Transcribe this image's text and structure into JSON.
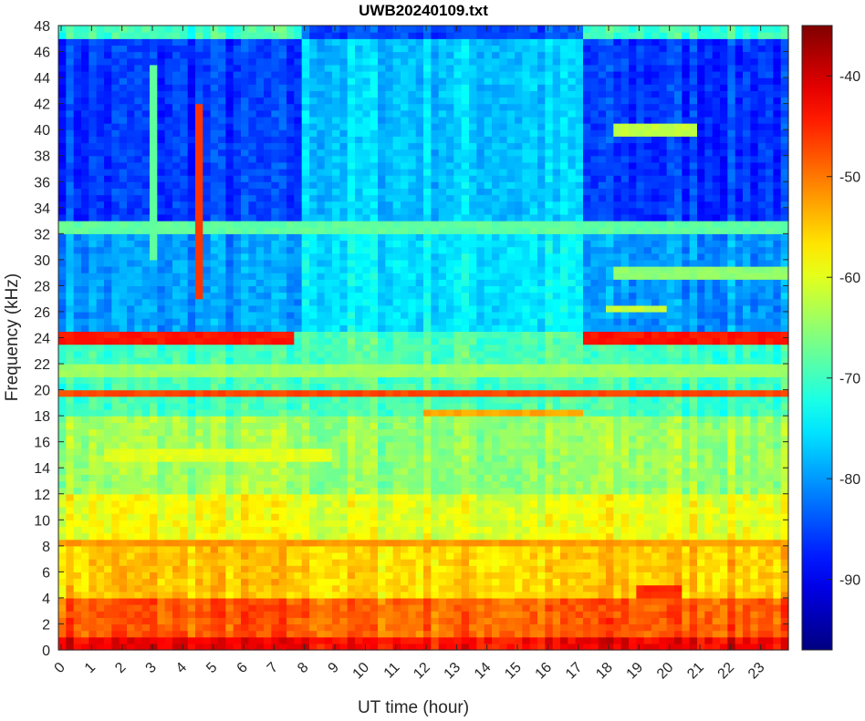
{
  "chart_data": {
    "type": "heatmap",
    "title": "UWB20240109.txt",
    "xlabel": "UT time (hour)",
    "ylabel": "Frequency (kHz)",
    "xlim": [
      0,
      24
    ],
    "ylim": [
      0,
      48
    ],
    "clim": [
      -97,
      -35
    ],
    "colormap": "jet",
    "xticks": [
      0,
      1,
      2,
      3,
      4,
      5,
      6,
      7,
      8,
      9,
      10,
      11,
      12,
      13,
      14,
      15,
      16,
      17,
      18,
      19,
      20,
      21,
      22,
      23
    ],
    "yticks": [
      0,
      2,
      4,
      6,
      8,
      10,
      12,
      14,
      16,
      18,
      20,
      22,
      24,
      26,
      28,
      30,
      32,
      34,
      36,
      38,
      40,
      42,
      44,
      46,
      48
    ],
    "colorbar_ticks": [
      -40,
      -50,
      -60,
      -70,
      -80,
      -90
    ],
    "grid_resolution": {
      "hours_per_cell": 0.25,
      "khz_per_cell": 0.5
    },
    "background_profile_db": [
      {
        "f_from": 0,
        "f_to": 1,
        "night": -42,
        "day": -43
      },
      {
        "f_from": 1,
        "f_to": 4,
        "night": -48,
        "day": -49
      },
      {
        "f_from": 4,
        "f_to": 8,
        "night": -55,
        "day": -56
      },
      {
        "f_from": 8,
        "f_to": 12,
        "night": -59,
        "day": -60
      },
      {
        "f_from": 12,
        "f_to": 18,
        "night": -64,
        "day": -65
      },
      {
        "f_from": 18,
        "f_to": 24.5,
        "night": -70,
        "day": -69
      },
      {
        "f_from": 24.5,
        "f_to": 32,
        "night": -80,
        "day": -75
      },
      {
        "f_from": 32,
        "f_to": 47,
        "night": -86,
        "day": -77
      },
      {
        "f_from": 47,
        "f_to": 48,
        "night": -70,
        "day": -85
      }
    ],
    "day_period_hours": [
      7.8,
      17.2
    ],
    "transmitter_lines": [
      {
        "freq_khz": 24.0,
        "t_from": 0,
        "t_to": 7.8,
        "db": -44
      },
      {
        "freq_khz": 24.0,
        "t_from": 17.3,
        "t_to": 24,
        "db": -44
      },
      {
        "freq_khz": 19.8,
        "t_from": 0,
        "t_to": 24,
        "db": -47
      },
      {
        "freq_khz": 18.2,
        "t_from": 12,
        "t_to": 17.3,
        "db": -53
      },
      {
        "freq_khz": 40.0,
        "t_from": 18.2,
        "t_to": 21,
        "db": -62
      },
      {
        "freq_khz": 29.0,
        "t_from": 18.3,
        "t_to": 24,
        "db": -65
      },
      {
        "freq_khz": 26.2,
        "t_from": 18,
        "t_to": 20,
        "db": -62
      },
      {
        "freq_khz": 32.5,
        "t_from": 0,
        "t_to": 24,
        "db": -68
      },
      {
        "freq_khz": 21.5,
        "t_from": 0,
        "t_to": 24,
        "db": -64
      },
      {
        "freq_khz": 15.0,
        "t_from": 1.5,
        "t_to": 9,
        "db": -60
      },
      {
        "freq_khz": 4.5,
        "t_from": 19,
        "t_to": 20.5,
        "db": -45
      },
      {
        "freq_khz": 8.2,
        "t_from": 0,
        "t_to": 24,
        "db": -52
      }
    ],
    "transients": [
      {
        "t_hour": 4.6,
        "f_from": 27,
        "f_to": 42,
        "db": -46
      },
      {
        "t_hour": 3.2,
        "f_from": 30,
        "f_to": 45,
        "db": -68
      }
    ]
  }
}
